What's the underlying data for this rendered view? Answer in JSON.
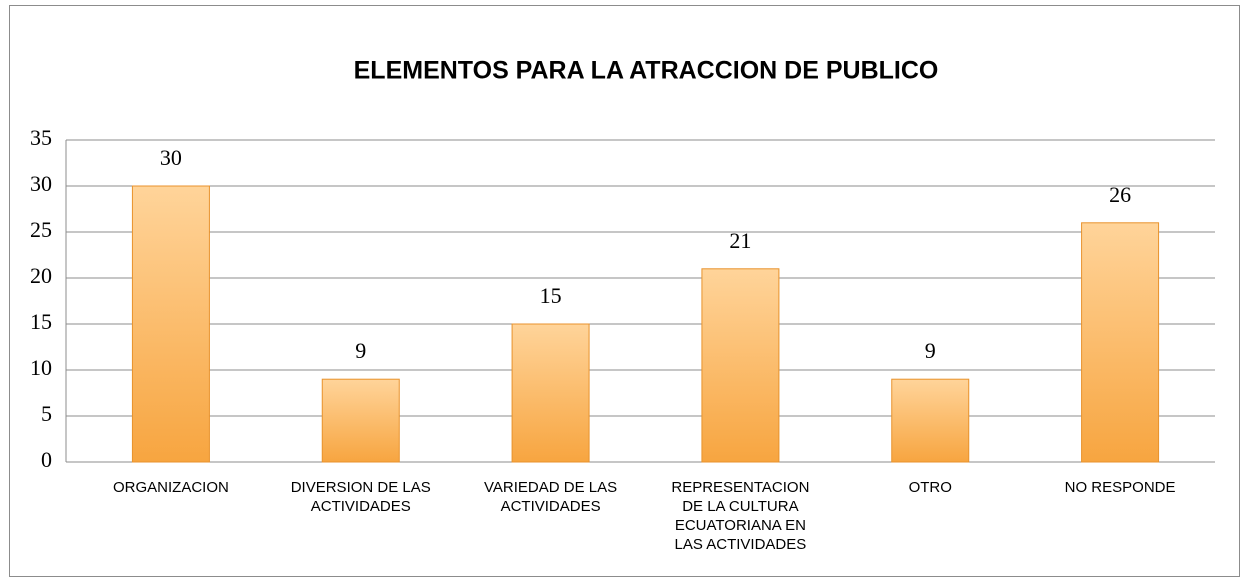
{
  "chart_data": {
    "type": "bar",
    "title": "ELEMENTOS PARA LA ATRACCION DE PUBLICO",
    "categories": [
      "ORGANIZACION",
      "DIVERSION DE LAS ACTIVIDADES",
      "VARIEDAD DE LAS ACTIVIDADES",
      "REPRESENTACION DE LA CULTURA ECUATORIANA EN LAS ACTIVIDADES",
      "OTRO",
      "NO RESPONDE"
    ],
    "values": [
      30,
      9,
      15,
      21,
      9,
      26
    ],
    "color": "#f7a540",
    "ylim": [
      0,
      35
    ],
    "yticks": [
      0,
      5,
      10,
      15,
      20,
      25,
      30,
      35
    ],
    "grid": true
  }
}
